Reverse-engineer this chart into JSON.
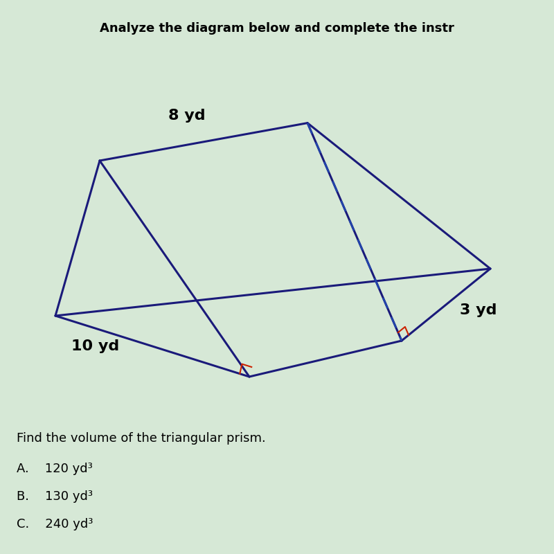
{
  "title": "Analyze the diagram below and complete the instr",
  "title_fontsize": 13,
  "background_color": "#d6e8d6",
  "prism_color": "#1a1a7a",
  "dashed_color": "#2244aa",
  "right_angle_color": "#cc2200",
  "label_8yd": "8 yd",
  "label_10yd": "10 yd",
  "label_3yd": "3 yd",
  "question": "Find the volume of the triangular prism.",
  "answer_A": "A.    120 yd³",
  "answer_B": "B.    130 yd³",
  "answer_C": "C.    240 yd³",
  "question_fontsize": 13,
  "answer_fontsize": 13,
  "label_fontsize": 16
}
